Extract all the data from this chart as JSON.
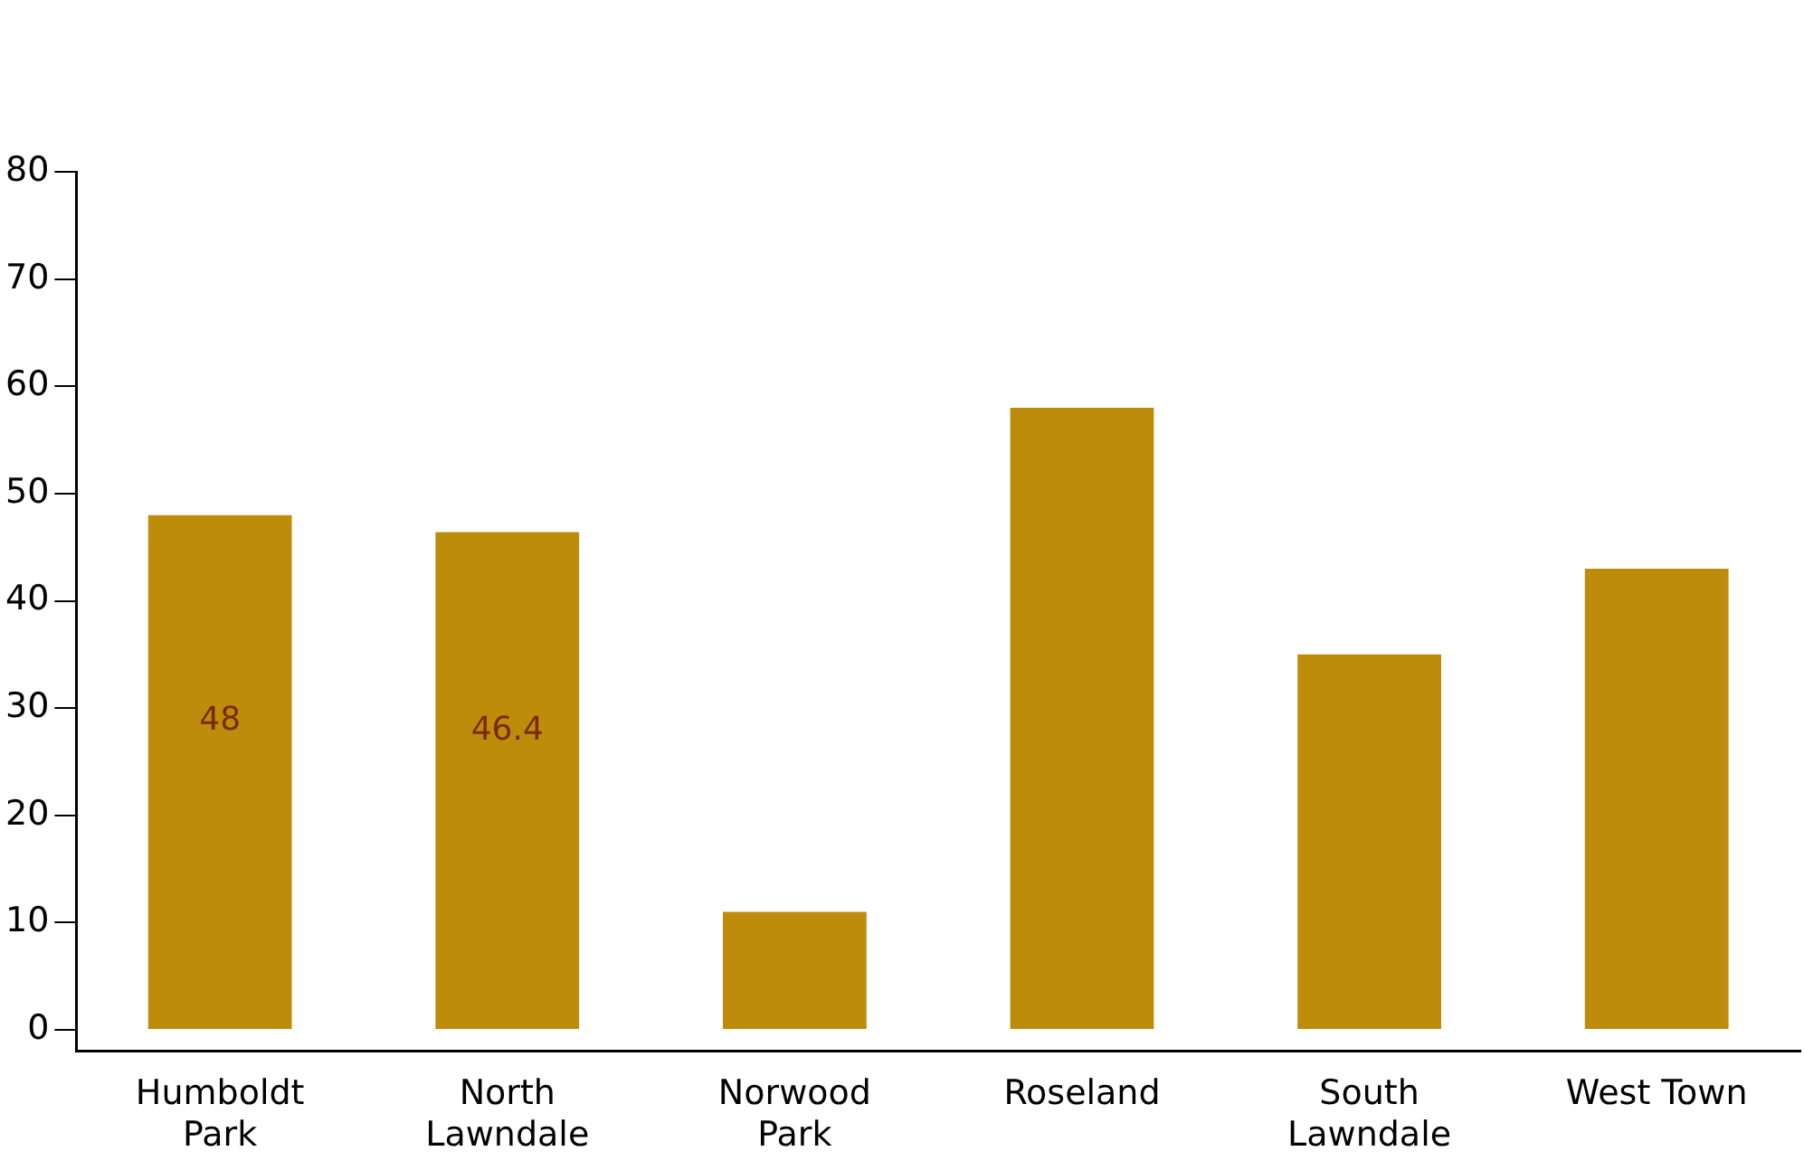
{
  "chart_data": {
    "type": "bar",
    "categories": [
      "Humboldt\nPark",
      "North\nLawndale",
      "Norwood\nPark",
      "Roseland",
      "South\nLawndale",
      "West Town"
    ],
    "values": [
      48,
      46.4,
      11,
      58,
      35,
      43
    ],
    "value_labels": [
      "48",
      "46.4",
      null,
      null,
      null,
      null
    ],
    "color": "#bd8c0a",
    "ylim": [
      -2,
      80
    ],
    "yticks": [
      0,
      10,
      20,
      30,
      40,
      50,
      60,
      70,
      80
    ],
    "grid": false,
    "legend": false
  }
}
